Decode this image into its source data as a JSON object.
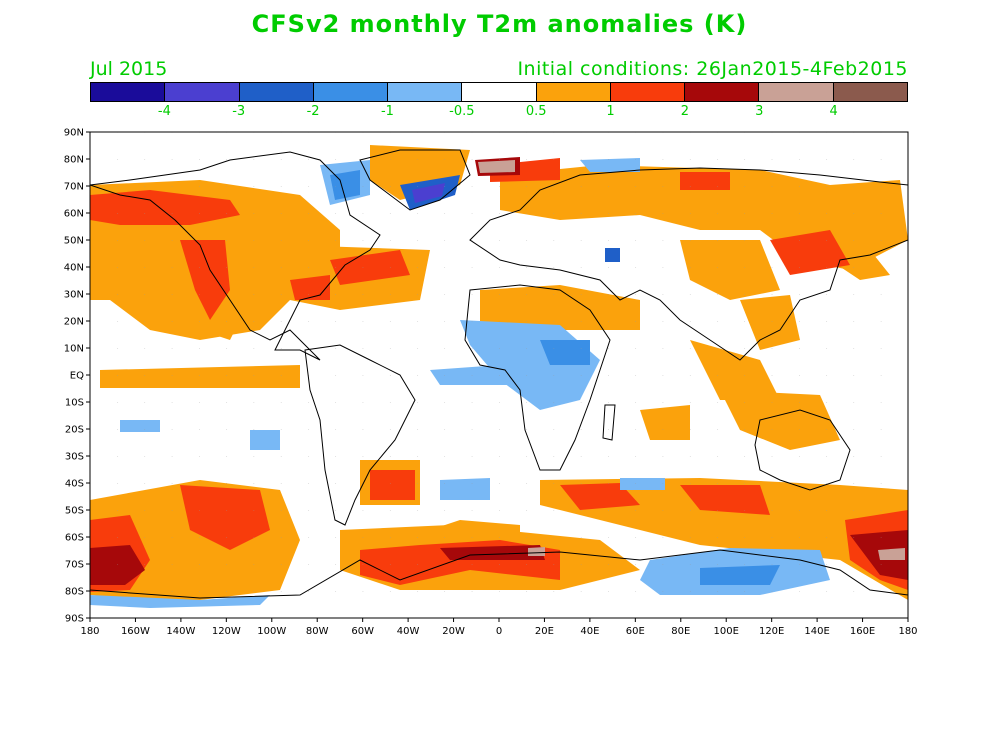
{
  "header": {
    "title": "CFSv2 monthly T2m anomalies (K)",
    "valid_month": "Jul 2015",
    "initial_conditions": "Initial conditions: 26Jan2015-4Feb2015"
  },
  "colorbar": {
    "colors": [
      "#1a0c9a",
      "#4b3fd0",
      "#1f5fc8",
      "#3a8fe6",
      "#78b8f5",
      "#ffffff",
      "#fba20c",
      "#f83c0c",
      "#a6080a",
      "#c9a196",
      "#8b5a4d"
    ],
    "labels": [
      "-4",
      "-3",
      "-2",
      "-1",
      "-0.5",
      "0.5",
      "1",
      "2",
      "3",
      "4"
    ]
  },
  "map": {
    "lat_labels": [
      "90N",
      "80N",
      "70N",
      "60N",
      "50N",
      "40N",
      "30N",
      "20N",
      "10N",
      "EQ",
      "10S",
      "20S",
      "30S",
      "40S",
      "50S",
      "60S",
      "70S",
      "80S",
      "90S"
    ],
    "lon_labels": [
      "180",
      "160W",
      "140W",
      "120W",
      "100W",
      "80W",
      "60W",
      "40W",
      "20W",
      "0",
      "20E",
      "40E",
      "60E",
      "80E",
      "100E",
      "120E",
      "140E",
      "160E",
      "180"
    ]
  }
}
